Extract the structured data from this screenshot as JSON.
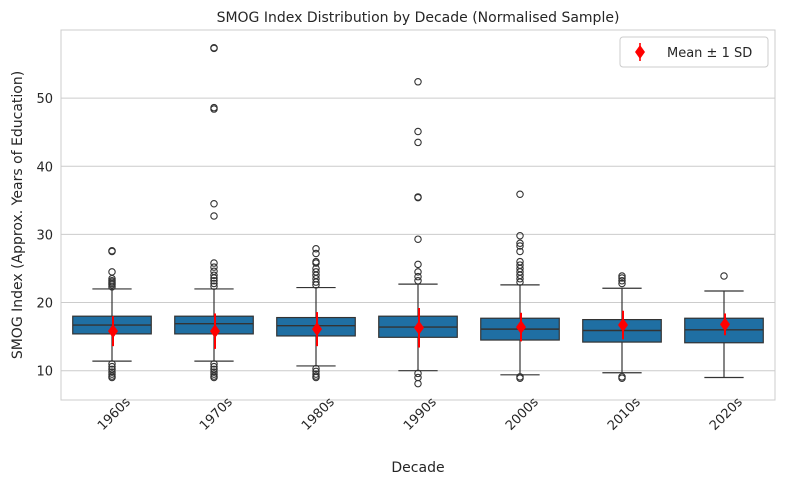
{
  "chart_data": {
    "type": "box",
    "title": "SMOG Index Distribution by Decade (Normalised Sample)",
    "xlabel": "Decade",
    "ylabel": "SMOG Index (Approx. Years of Education)",
    "ylim": [
      5.7,
      60
    ],
    "yticks": [
      10,
      20,
      30,
      40,
      50
    ],
    "grid": "horizontal",
    "legend": {
      "position": "top-right",
      "label": "Mean ± 1 SD"
    },
    "colors": {
      "box": "#1f6fa3",
      "mean": "#ff0000",
      "grid": "#cccccc",
      "outline": "#333333"
    },
    "categories": [
      "1960s",
      "1970s",
      "1980s",
      "1990s",
      "2000s",
      "2010s",
      "2020s"
    ],
    "boxes": [
      {
        "q1": 15.4,
        "median": 16.7,
        "q3": 18.0,
        "whisker_low": 11.4,
        "whisker_high": 22.0,
        "mean": 15.8,
        "sd": 2.2,
        "outliers_high": [
          22.3,
          22.6,
          22.8,
          23.0,
          23.2,
          23.5,
          24.5,
          27.5,
          27.6
        ],
        "outliers_low": [
          11.0,
          10.6,
          10.2,
          9.8,
          9.5,
          9.2,
          9.0
        ]
      },
      {
        "q1": 15.4,
        "median": 16.9,
        "q3": 18.0,
        "whisker_low": 11.4,
        "whisker_high": 22.0,
        "mean": 15.8,
        "sd": 2.6,
        "outliers_high": [
          22.4,
          22.8,
          23.2,
          23.6,
          24.0,
          24.6,
          25.2,
          25.8,
          32.7,
          34.5,
          48.4,
          48.6,
          57.3,
          57.4
        ],
        "outliers_low": [
          11.0,
          10.6,
          10.2,
          9.8,
          9.5,
          9.2,
          9.0
        ]
      },
      {
        "q1": 15.1,
        "median": 16.6,
        "q3": 17.8,
        "whisker_low": 10.7,
        "whisker_high": 22.2,
        "mean": 16.1,
        "sd": 2.5,
        "outliers_high": [
          22.6,
          23.0,
          23.5,
          24.0,
          24.5,
          25.0,
          25.8,
          26.0,
          27.2,
          27.9
        ],
        "outliers_low": [
          10.3,
          9.9,
          9.5,
          9.2,
          9.0
        ]
      },
      {
        "q1": 14.9,
        "median": 16.4,
        "q3": 18.0,
        "whisker_low": 10.0,
        "whisker_high": 22.7,
        "mean": 16.3,
        "sd": 2.9,
        "outliers_high": [
          23.2,
          23.8,
          24.5,
          25.6,
          29.3,
          35.4,
          35.5,
          43.5,
          45.1,
          52.4
        ],
        "outliers_low": [
          9.6,
          9.0,
          8.1
        ]
      },
      {
        "q1": 14.5,
        "median": 16.1,
        "q3": 17.7,
        "whisker_low": 9.4,
        "whisker_high": 22.6,
        "mean": 16.4,
        "sd": 2.1,
        "outliers_high": [
          23.0,
          23.5,
          24.0,
          24.5,
          25.0,
          25.5,
          26.0,
          27.5,
          28.3,
          28.7,
          29.8,
          35.9
        ],
        "outliers_low": [
          9.1,
          8.9
        ]
      },
      {
        "q1": 14.2,
        "median": 15.9,
        "q3": 17.5,
        "whisker_low": 9.7,
        "whisker_high": 22.1,
        "mean": 16.7,
        "sd": 2.1,
        "outliers_high": [
          22.8,
          23.2,
          23.6,
          23.9
        ],
        "outliers_low": [
          9.1,
          8.9
        ]
      },
      {
        "q1": 14.1,
        "median": 16.0,
        "q3": 17.7,
        "whisker_low": 9.0,
        "whisker_high": 21.7,
        "mean": 16.8,
        "sd": 1.6,
        "outliers_high": [
          23.9
        ],
        "outliers_low": []
      }
    ]
  }
}
